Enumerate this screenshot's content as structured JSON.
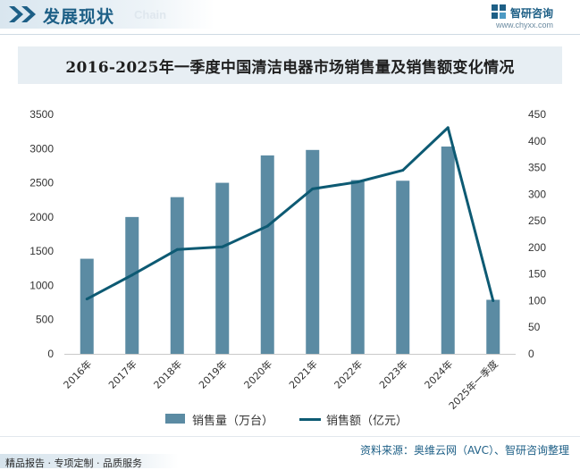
{
  "header": {
    "section_title": "发展现状",
    "section_watermark": "Chain",
    "brand_name": "智研咨询",
    "brand_url": "www.chyxx.com"
  },
  "chart_data": {
    "type": "bar",
    "title": "2016-2025年一季度中国清洁电器市场销售量及销售额变化情况",
    "categories": [
      "2016年",
      "2017年",
      "2018年",
      "2019年",
      "2020年",
      "2021年",
      "2022年",
      "2023年",
      "2024年",
      "2025年一季度"
    ],
    "series": [
      {
        "name": "销售量（万台）",
        "type": "bar",
        "axis": "left",
        "color": "#5b8ba3",
        "values": [
          1390,
          2000,
          2290,
          2500,
          2900,
          2980,
          2540,
          2530,
          3030,
          790
        ]
      },
      {
        "name": "销售额（亿元）",
        "type": "line",
        "axis": "right",
        "color": "#0d5a73",
        "values": [
          103,
          148,
          196,
          201,
          240,
          310,
          323,
          345,
          425,
          100
        ]
      }
    ],
    "y_left": {
      "min": 0,
      "max": 3500,
      "step": 500
    },
    "y_right": {
      "min": 0,
      "max": 450,
      "step": 50
    },
    "grid": false,
    "legend_position": "bottom"
  },
  "footer": {
    "source": "资料来源：奥维云网（AVC）、智研咨询整理",
    "slogan": "精品报告 · 专项定制 · 品质服务"
  }
}
